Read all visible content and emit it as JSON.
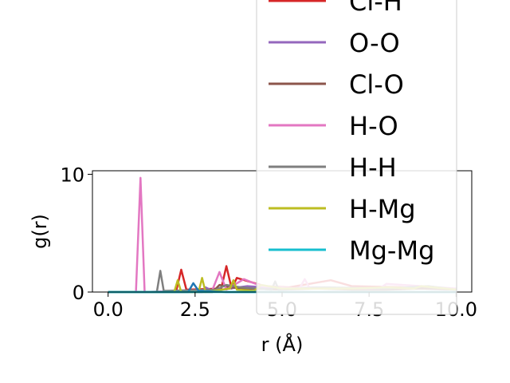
{
  "chart_data": {
    "type": "line",
    "title": "",
    "xlabel": "r (Å)",
    "ylabel": "g(r)",
    "xlim": [
      -0.45,
      10.45
    ],
    "ylim": [
      0,
      10.3
    ],
    "xticks": [
      0.0,
      2.5,
      5.0,
      7.5,
      10.0
    ],
    "xtick_labels": [
      "0.0",
      "2.5",
      "5.0",
      "7.5",
      "10.0"
    ],
    "yticks": [
      0,
      10
    ],
    "ytick_labels": [
      "0",
      "10"
    ],
    "grid": false,
    "legend_position": "upper-right",
    "legend_cropped_entries": 1,
    "series": [
      {
        "name": "Cl-H",
        "color": "#d62728",
        "x": [
          0,
          1.95,
          2.1,
          2.25,
          3.25,
          3.4,
          3.55,
          3.7,
          4.5,
          5.2,
          6.4,
          7.0,
          8.5,
          10.0
        ],
        "y": [
          0,
          0,
          1.9,
          0.2,
          0.3,
          2.2,
          0.3,
          1.2,
          0.5,
          0.4,
          1.0,
          0.5,
          0.4,
          0.2
        ]
      },
      {
        "name": "O-O",
        "color": "#9467bd",
        "x": [
          0,
          2.7,
          2.8,
          3.0,
          4.0,
          5.0,
          6.0,
          7.0,
          8.0,
          9.0,
          10.0
        ],
        "y": [
          0,
          0,
          0.4,
          0.1,
          0.5,
          0.3,
          0.4,
          0.3,
          0.3,
          0.3,
          0.2
        ]
      },
      {
        "name": "Cl-O",
        "color": "#8c564b",
        "x": [
          0,
          3.0,
          3.2,
          3.5,
          4.0,
          5.0,
          6.0,
          7.0,
          8.0,
          9.0,
          10.0
        ],
        "y": [
          0,
          0,
          0.6,
          0.4,
          0.3,
          0.2,
          0.3,
          0.2,
          0.2,
          0.3,
          0.2
        ]
      },
      {
        "name": "H-O",
        "color": "#e377c2",
        "x": [
          0,
          0.8,
          0.93,
          1.05,
          3.0,
          3.2,
          3.4,
          3.9,
          4.4,
          5.5,
          5.65,
          5.8,
          7.8,
          8.0,
          10.0
        ],
        "y": [
          0,
          0,
          9.7,
          0,
          0.2,
          1.7,
          0.2,
          1.1,
          0.5,
          0.3,
          1.1,
          0.3,
          0.3,
          0.7,
          0.3
        ]
      },
      {
        "name": "H-H",
        "color": "#7f7f7f",
        "x": [
          0,
          1.4,
          1.5,
          1.6,
          3.1,
          3.4,
          3.8,
          4.7,
          4.8,
          4.9,
          6.2,
          8.0,
          9.2,
          10.0
        ],
        "y": [
          0,
          0,
          1.8,
          0.1,
          0.2,
          0.6,
          0.4,
          0.2,
          0.9,
          0.2,
          0.4,
          0.3,
          0.5,
          0.2
        ]
      },
      {
        "name": "H-Mg",
        "color": "#bcbd22",
        "x": [
          0,
          1.9,
          2.0,
          2.1,
          2.6,
          2.7,
          2.8,
          3.5,
          3.6,
          3.7,
          4.2,
          4.4,
          5.0,
          6.0,
          7.0,
          8.0,
          8.8,
          9.0,
          10.0
        ],
        "y": [
          0,
          0,
          1.0,
          0,
          0,
          1.2,
          0,
          0.3,
          1.0,
          0.2,
          0.1,
          0.6,
          0.3,
          0.3,
          0.3,
          0.4,
          0.3,
          0.5,
          0.2
        ]
      },
      {
        "name": "Mg-Mg",
        "color": "#1f77b4",
        "x": [
          0,
          2.3,
          2.45,
          2.6,
          3.4,
          10.0
        ],
        "y": [
          0,
          0,
          0.75,
          0.1,
          0,
          0
        ]
      },
      {
        "name": "Mg-Mg",
        "color": "#17becf",
        "x": [
          0,
          10.0
        ],
        "y": [
          0,
          0
        ]
      }
    ],
    "legend_entries": [
      {
        "label": "Cl-H",
        "color": "#d62728"
      },
      {
        "label": "O-O",
        "color": "#9467bd"
      },
      {
        "label": "Cl-O",
        "color": "#8c564b"
      },
      {
        "label": "H-O",
        "color": "#e377c2"
      },
      {
        "label": "H-H",
        "color": "#7f7f7f"
      },
      {
        "label": "H-Mg",
        "color": "#bcbd22"
      },
      {
        "label": "Mg-Mg",
        "color": "#17becf"
      }
    ]
  }
}
